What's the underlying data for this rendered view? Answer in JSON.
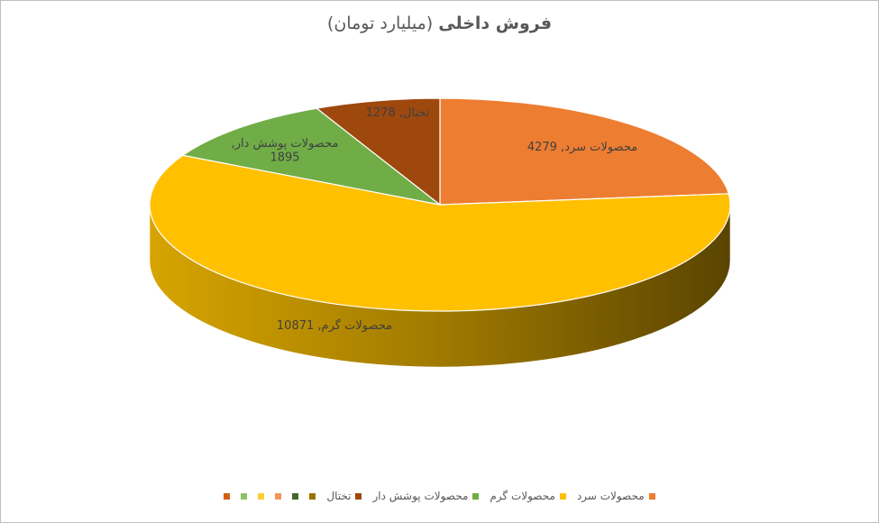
{
  "chart_data": {
    "type": "pie3d",
    "title": "فروش داخلی",
    "subtitle": "(میلیارد تومان)",
    "categories": [
      "محصولات سرد",
      "محصولات گرم",
      "محصولات پوشش دار",
      "تختال",
      null,
      null,
      null,
      null,
      null,
      null
    ],
    "values": [
      4279,
      10871,
      1895,
      1278,
      null,
      null,
      null,
      null,
      null,
      null
    ],
    "colors": [
      "#ed7d31",
      "#ffc000",
      "#70ad47",
      "#9e480e",
      "#997300",
      "#43682b",
      "#f1975a",
      "#ffcd33",
      "#8cc168",
      "#d26012"
    ]
  }
}
